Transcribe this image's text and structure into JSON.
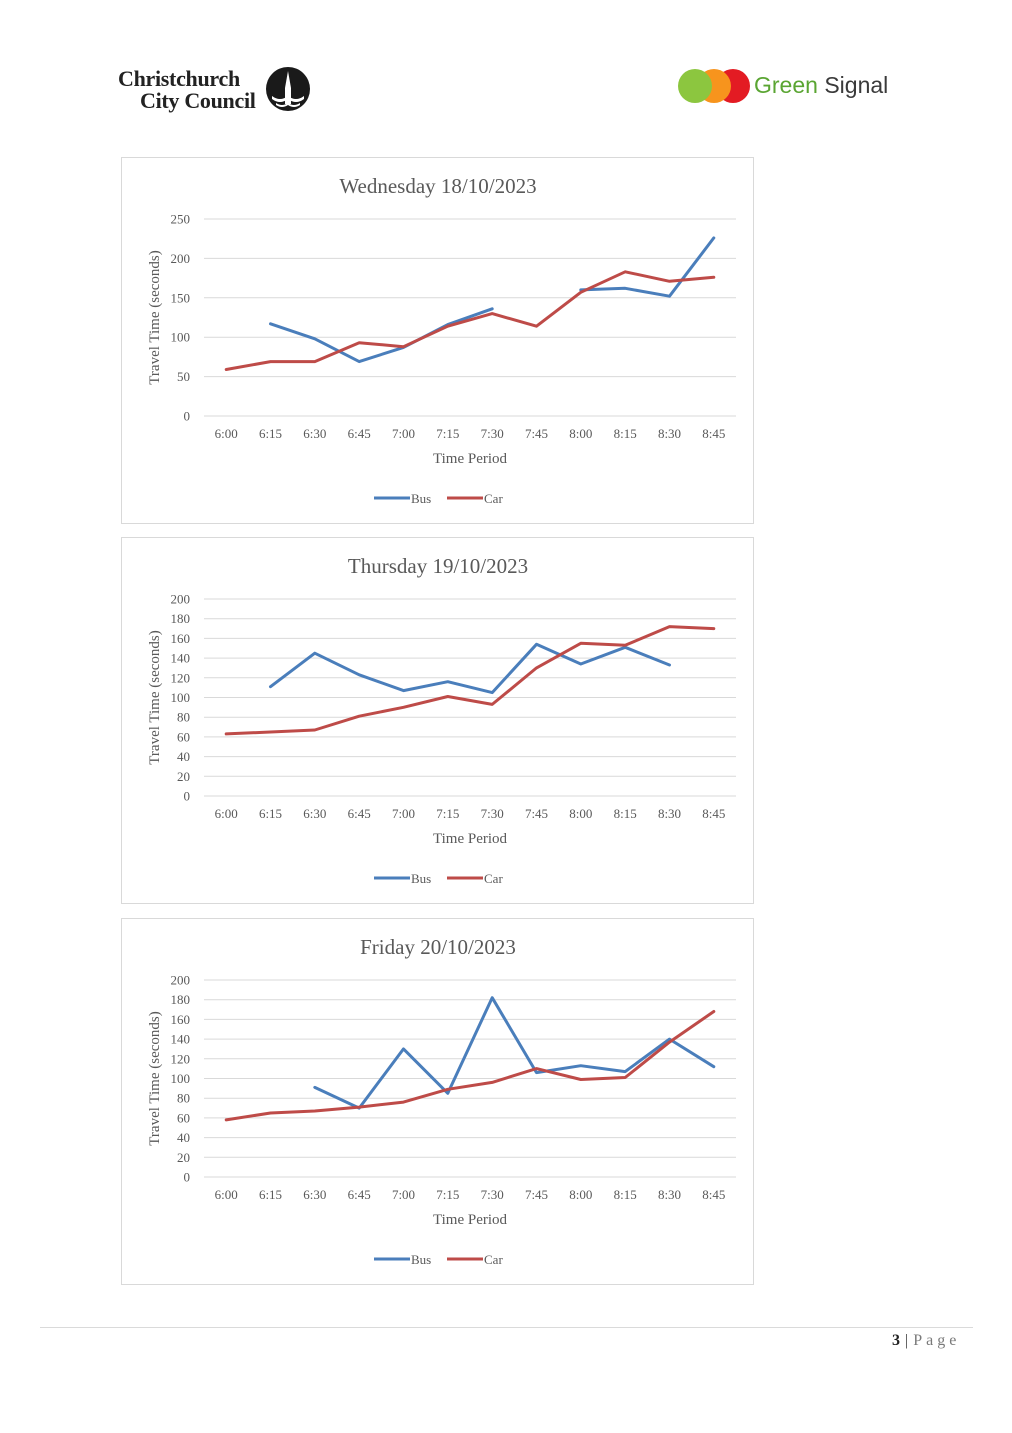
{
  "header": {
    "ccc_line1": "Christchurch",
    "ccc_line2": "City Council",
    "gs_word1": "Green",
    "gs_word2": "Signal",
    "gs_colors": [
      "#8cc63f",
      "#f7941d",
      "#e31b23"
    ]
  },
  "chart_data": [
    {
      "type": "line",
      "title": "Wednesday 18/10/2023",
      "xlabel": "Time Period",
      "ylabel": "Travel Time (seconds)",
      "ylim": [
        0,
        250
      ],
      "yticks": [
        0,
        50,
        100,
        150,
        200,
        250
      ],
      "grid": true,
      "legend": "bottom",
      "categories": [
        "6:00",
        "6:15",
        "6:30",
        "6:45",
        "7:00",
        "7:15",
        "7:30",
        "7:45",
        "8:00",
        "8:15",
        "8:30",
        "8:45"
      ],
      "series": [
        {
          "name": "Bus",
          "color": "#4a7ebb",
          "values": [
            null,
            117,
            98,
            69,
            87,
            116,
            136,
            null,
            160,
            162,
            152,
            226
          ]
        },
        {
          "name": "Car",
          "color": "#be4b48",
          "values": [
            59,
            69,
            69,
            93,
            88,
            114,
            130,
            114,
            157,
            183,
            171,
            176
          ]
        }
      ]
    },
    {
      "type": "line",
      "title": "Thursday 19/10/2023",
      "xlabel": "Time Period",
      "ylabel": "Travel Time (seconds)",
      "ylim": [
        0,
        200
      ],
      "yticks": [
        0,
        20,
        40,
        60,
        80,
        100,
        120,
        140,
        160,
        180,
        200
      ],
      "grid": true,
      "legend": "bottom",
      "categories": [
        "6:00",
        "6:15",
        "6:30",
        "6:45",
        "7:00",
        "7:15",
        "7:30",
        "7:45",
        "8:00",
        "8:15",
        "8:30",
        "8:45"
      ],
      "series": [
        {
          "name": "Bus",
          "color": "#4a7ebb",
          "values": [
            null,
            111,
            145,
            123,
            107,
            116,
            105,
            154,
            134,
            151,
            133,
            null
          ]
        },
        {
          "name": "Car",
          "color": "#be4b48",
          "values": [
            63,
            65,
            67,
            81,
            90,
            101,
            93,
            130,
            155,
            153,
            172,
            170
          ]
        }
      ]
    },
    {
      "type": "line",
      "title": "Friday 20/10/2023",
      "xlabel": "Time Period",
      "ylabel": "Travel Time (seconds)",
      "ylim": [
        0,
        200
      ],
      "yticks": [
        0,
        20,
        40,
        60,
        80,
        100,
        120,
        140,
        160,
        180,
        200
      ],
      "grid": true,
      "legend": "bottom",
      "categories": [
        "6:00",
        "6:15",
        "6:30",
        "6:45",
        "7:00",
        "7:15",
        "7:30",
        "7:45",
        "8:00",
        "8:15",
        "8:30",
        "8:45"
      ],
      "series": [
        {
          "name": "Bus",
          "color": "#4a7ebb",
          "values": [
            null,
            null,
            91,
            70,
            130,
            85,
            182,
            106,
            113,
            107,
            140,
            112
          ]
        },
        {
          "name": "Car",
          "color": "#be4b48",
          "values": [
            58,
            65,
            67,
            71,
            76,
            89,
            96,
            110,
            99,
            101,
            137,
            168
          ]
        }
      ]
    }
  ],
  "footer": {
    "page_number": "3",
    "separator": "|",
    "page_label": "Page"
  }
}
